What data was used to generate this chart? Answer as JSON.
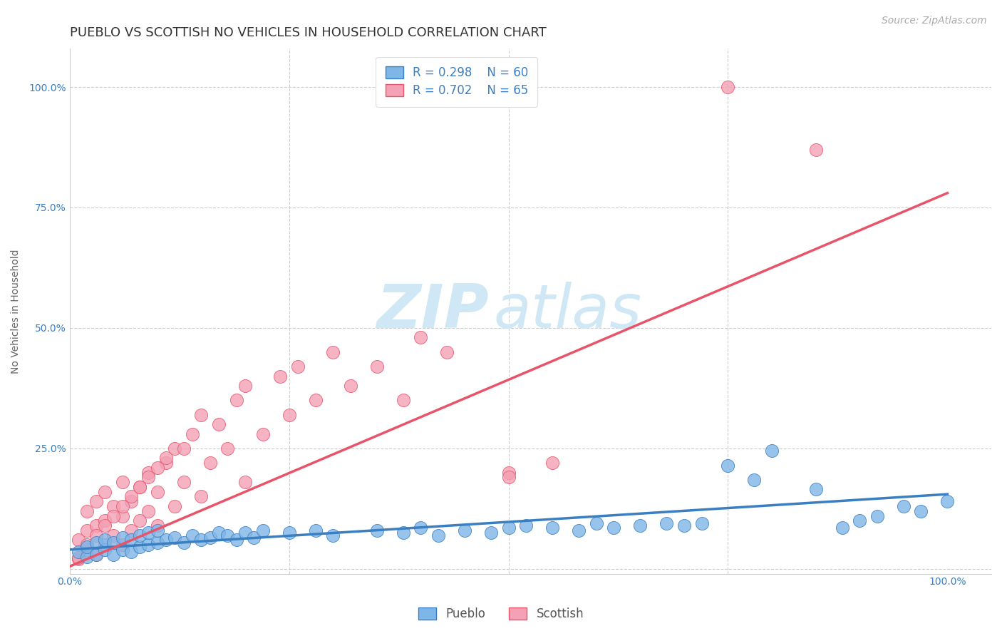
{
  "title": "PUEBLO VS SCOTTISH NO VEHICLES IN HOUSEHOLD CORRELATION CHART",
  "source": "Source: ZipAtlas.com",
  "ylabel": "No Vehicles in Household",
  "xlim": [
    0.0,
    1.05
  ],
  "ylim": [
    -0.01,
    1.08
  ],
  "pueblo_R": 0.298,
  "pueblo_N": 60,
  "scottish_R": 0.702,
  "scottish_N": 65,
  "pueblo_color": "#7EB6E8",
  "scottish_color": "#F4A0B5",
  "pueblo_line_color": "#3A7FC1",
  "scottish_line_color": "#E8546A",
  "pueblo_x": [
    0.01,
    0.02,
    0.02,
    0.03,
    0.03,
    0.04,
    0.04,
    0.05,
    0.05,
    0.06,
    0.06,
    0.07,
    0.07,
    0.08,
    0.08,
    0.09,
    0.09,
    0.1,
    0.1,
    0.11,
    0.12,
    0.13,
    0.14,
    0.15,
    0.16,
    0.17,
    0.18,
    0.19,
    0.2,
    0.21,
    0.22,
    0.25,
    0.28,
    0.3,
    0.35,
    0.38,
    0.4,
    0.42,
    0.45,
    0.48,
    0.5,
    0.52,
    0.55,
    0.58,
    0.6,
    0.62,
    0.65,
    0.68,
    0.7,
    0.72,
    0.75,
    0.78,
    0.8,
    0.85,
    0.88,
    0.9,
    0.92,
    0.95,
    0.97,
    1.0
  ],
  "pueblo_y": [
    0.035,
    0.025,
    0.045,
    0.03,
    0.055,
    0.04,
    0.06,
    0.03,
    0.055,
    0.04,
    0.065,
    0.035,
    0.06,
    0.045,
    0.07,
    0.05,
    0.075,
    0.055,
    0.08,
    0.06,
    0.065,
    0.055,
    0.07,
    0.06,
    0.065,
    0.075,
    0.07,
    0.06,
    0.075,
    0.065,
    0.08,
    0.075,
    0.08,
    0.07,
    0.08,
    0.075,
    0.085,
    0.07,
    0.08,
    0.075,
    0.085,
    0.09,
    0.085,
    0.08,
    0.095,
    0.085,
    0.09,
    0.095,
    0.09,
    0.095,
    0.215,
    0.185,
    0.245,
    0.165,
    0.085,
    0.1,
    0.11,
    0.13,
    0.12,
    0.14
  ],
  "scottish_x": [
    0.01,
    0.01,
    0.02,
    0.02,
    0.02,
    0.03,
    0.03,
    0.03,
    0.04,
    0.04,
    0.04,
    0.05,
    0.05,
    0.06,
    0.06,
    0.06,
    0.07,
    0.07,
    0.08,
    0.08,
    0.09,
    0.09,
    0.1,
    0.1,
    0.11,
    0.12,
    0.12,
    0.13,
    0.14,
    0.15,
    0.15,
    0.16,
    0.17,
    0.18,
    0.19,
    0.2,
    0.2,
    0.22,
    0.24,
    0.25,
    0.26,
    0.28,
    0.3,
    0.32,
    0.35,
    0.38,
    0.4,
    0.43,
    0.5,
    0.55,
    0.01,
    0.02,
    0.03,
    0.04,
    0.05,
    0.06,
    0.07,
    0.08,
    0.09,
    0.1,
    0.11,
    0.13,
    0.75,
    0.85,
    0.5
  ],
  "scottish_y": [
    0.02,
    0.06,
    0.04,
    0.08,
    0.12,
    0.03,
    0.09,
    0.14,
    0.05,
    0.1,
    0.16,
    0.07,
    0.13,
    0.05,
    0.11,
    0.18,
    0.08,
    0.14,
    0.1,
    0.17,
    0.12,
    0.2,
    0.09,
    0.16,
    0.22,
    0.13,
    0.25,
    0.18,
    0.28,
    0.15,
    0.32,
    0.22,
    0.3,
    0.25,
    0.35,
    0.18,
    0.38,
    0.28,
    0.4,
    0.32,
    0.42,
    0.35,
    0.45,
    0.38,
    0.42,
    0.35,
    0.48,
    0.45,
    0.2,
    0.22,
    0.024,
    0.05,
    0.07,
    0.09,
    0.11,
    0.13,
    0.15,
    0.17,
    0.19,
    0.21,
    0.23,
    0.25,
    1.0,
    0.87,
    0.19
  ],
  "pueblo_line": [
    0.0,
    1.0,
    0.04,
    0.155
  ],
  "scottish_line": [
    0.0,
    1.0,
    0.005,
    0.78
  ],
  "background_color": "#ffffff",
  "grid_color": "#cccccc",
  "watermark_zi": "ZIP",
  "watermark_atlas": "atlas",
  "watermark_color": "#d0e8f5",
  "title_fontsize": 13,
  "axis_label_fontsize": 10,
  "tick_fontsize": 10,
  "legend_fontsize": 12,
  "source_fontsize": 10
}
